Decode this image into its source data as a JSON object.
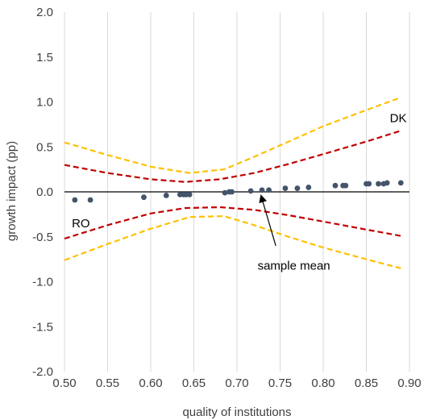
{
  "chart_data": {
    "type": "scatter",
    "xlabel": "quality of institutions",
    "ylabel": "growth impact (pp)",
    "xlim": [
      0.5,
      0.9
    ],
    "ylim": [
      -2.0,
      2.0
    ],
    "x_ticks": [
      "0.50",
      "0.55",
      "0.60",
      "0.65",
      "0.70",
      "0.75",
      "0.80",
      "0.85",
      "0.90"
    ],
    "y_ticks": [
      "2.0",
      "1.5",
      "1.0",
      "0.5",
      "0.0",
      "-0.5",
      "-1.0",
      "-1.5",
      "-2.0"
    ],
    "grid": "vertical",
    "series": [
      {
        "kind": "points",
        "color": "#44546A",
        "x": [
          0.512,
          0.53,
          0.592,
          0.618,
          0.634,
          0.638,
          0.641,
          0.645,
          0.686,
          0.691,
          0.694,
          0.716,
          0.729,
          0.737,
          0.756,
          0.77,
          0.783,
          0.814,
          0.823,
          0.826,
          0.85,
          0.853,
          0.864,
          0.87,
          0.874,
          0.89
        ],
        "y": [
          -0.09,
          -0.09,
          -0.06,
          -0.04,
          -0.03,
          -0.03,
          -0.03,
          -0.03,
          -0.01,
          0.0,
          0.0,
          0.01,
          0.02,
          0.02,
          0.04,
          0.04,
          0.05,
          0.07,
          0.07,
          0.07,
          0.09,
          0.09,
          0.09,
          0.09,
          0.1,
          0.1
        ]
      },
      {
        "kind": "band-line",
        "color": "#C00000",
        "dash": "dashed",
        "x": [
          0.5,
          0.55,
          0.6,
          0.64,
          0.68,
          0.72,
          0.76,
          0.8,
          0.85,
          0.89
        ],
        "y": [
          0.3,
          0.21,
          0.14,
          0.11,
          0.14,
          0.21,
          0.31,
          0.42,
          0.56,
          0.68
        ]
      },
      {
        "kind": "band-line",
        "color": "#C00000",
        "dash": "dashed",
        "x": [
          0.5,
          0.55,
          0.6,
          0.64,
          0.68,
          0.72,
          0.76,
          0.8,
          0.85,
          0.89
        ],
        "y": [
          -0.52,
          -0.37,
          -0.24,
          -0.18,
          -0.17,
          -0.2,
          -0.26,
          -0.33,
          -0.42,
          -0.49
        ]
      },
      {
        "kind": "band-line",
        "color": "#FFC000",
        "dash": "dashed",
        "x": [
          0.5,
          0.55,
          0.6,
          0.645,
          0.685,
          0.72,
          0.76,
          0.8,
          0.85,
          0.89
        ],
        "y": [
          0.55,
          0.41,
          0.28,
          0.21,
          0.25,
          0.39,
          0.56,
          0.73,
          0.91,
          1.05
        ]
      },
      {
        "kind": "band-line",
        "color": "#FFC000",
        "dash": "dashed",
        "x": [
          0.5,
          0.55,
          0.6,
          0.645,
          0.685,
          0.72,
          0.76,
          0.8,
          0.85,
          0.89
        ],
        "y": [
          -0.76,
          -0.58,
          -0.41,
          -0.28,
          -0.27,
          -0.37,
          -0.5,
          -0.62,
          -0.75,
          -0.85
        ]
      }
    ],
    "annotations": [
      {
        "text": "DK",
        "x": 0.887,
        "y": 0.82
      },
      {
        "text": "RO",
        "x": 0.519,
        "y": -0.35
      },
      {
        "text": "sample mean",
        "x": 0.766,
        "y": -0.82,
        "arrow_to": {
          "x": 0.728,
          "y": 0.0
        }
      }
    ],
    "colors": {
      "axis": "#000000",
      "grid": "#D9D9D9",
      "text": "#404040"
    }
  }
}
